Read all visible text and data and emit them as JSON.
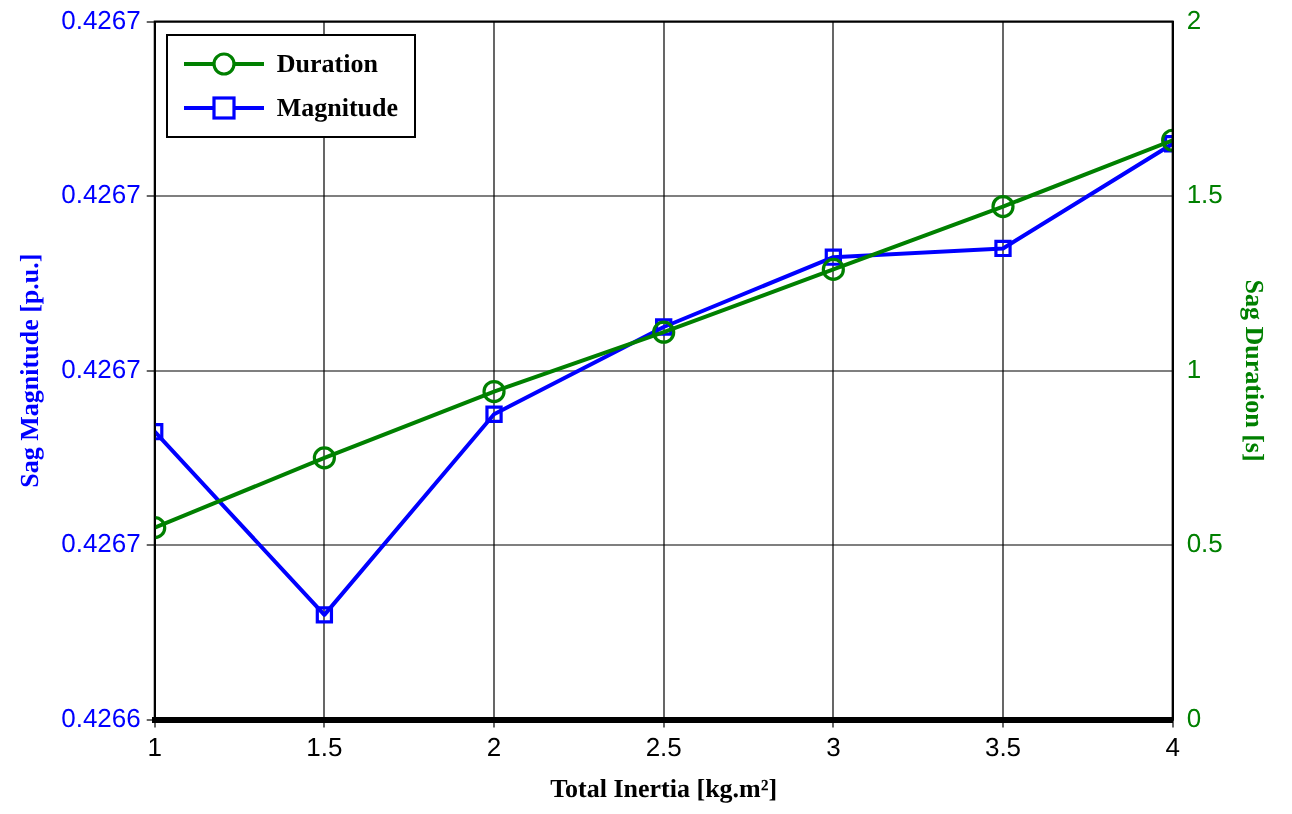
{
  "chart_data": {
    "type": "line",
    "xlabel": "Total Inertia [kg.m²]",
    "ylabel": "Sag Magnitude [p.u.]",
    "y2label": "Sag Duration [s]",
    "x": [
      1,
      1.5,
      2,
      2.5,
      3,
      3.5,
      4
    ],
    "xlim": [
      1,
      4
    ],
    "xticks": [
      1,
      1.5,
      2,
      2.5,
      3,
      3.5,
      4
    ],
    "ylim": [
      0.42664,
      0.42672
    ],
    "yticks": [
      {
        "value": 0.42664,
        "label": "0.4266"
      },
      {
        "value": 0.42666,
        "label": "0.4267"
      },
      {
        "value": 0.42668,
        "label": "0.4267"
      },
      {
        "value": 0.4267,
        "label": "0.4267"
      },
      {
        "value": 0.42672,
        "label": "0.4267"
      }
    ],
    "y2lim": [
      0,
      2
    ],
    "y2ticks": [
      0,
      0.5,
      1,
      1.5,
      2
    ],
    "series": [
      {
        "name": "Duration",
        "color": "#008000",
        "axis": "y2",
        "marker": "circle",
        "values": [
          0.55,
          0.75,
          0.94,
          1.11,
          1.29,
          1.47,
          1.66
        ]
      },
      {
        "name": "Magnitude",
        "color": "#0000ff",
        "axis": "y",
        "marker": "square",
        "values": [
          0.426673,
          0.426652,
          0.426675,
          0.426685,
          0.426693,
          0.426694,
          0.426706
        ]
      }
    ],
    "grid": true,
    "legend": "top left",
    "line_style": "solid"
  }
}
